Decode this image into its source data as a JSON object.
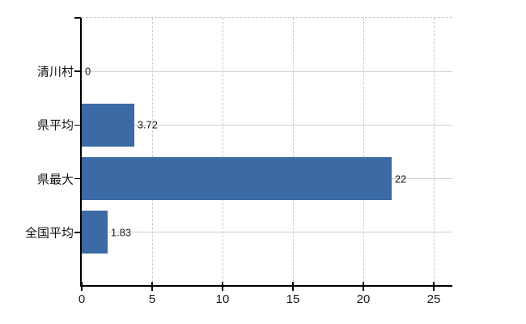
{
  "chart_data": {
    "type": "bar",
    "orientation": "horizontal",
    "title": "",
    "xlabel": "",
    "ylabel": "",
    "categories": [
      "清川村",
      "県平均",
      "県最大",
      "全国平均"
    ],
    "values": [
      0,
      3.72,
      22,
      1.83
    ],
    "value_labels": [
      "0",
      "3.72",
      "22",
      "1.83"
    ],
    "x_ticks": [
      0,
      5,
      10,
      15,
      20,
      25
    ],
    "x_tick_labels": [
      "0",
      "5",
      "10",
      "15",
      "20",
      "25"
    ],
    "xlim": [
      0,
      26.32
    ],
    "grid": true,
    "legend_position": "none",
    "colors": {
      "bar": "#3b6aa5",
      "axis": "#000000",
      "gridline": "#cccccc",
      "row_line": "#ccd6cc",
      "tick_label": "#1a1a1a",
      "value_label": "#1a1a1a",
      "category_label": "#111111",
      "background": "#ffffff"
    }
  }
}
